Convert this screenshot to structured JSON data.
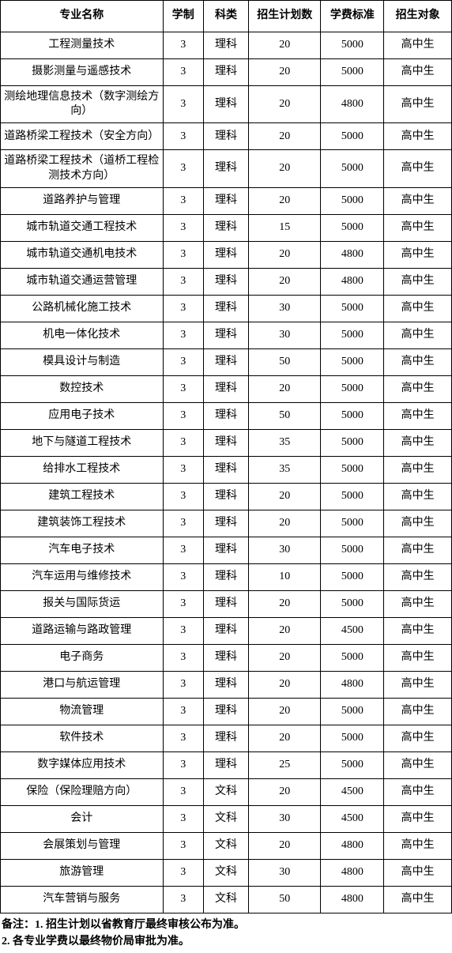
{
  "table": {
    "columns": [
      "专业名称",
      "学制",
      "科类",
      "招生计划数",
      "学费标准",
      "招生对象"
    ],
    "column_widths": [
      "36%",
      "9%",
      "10%",
      "16%",
      "14%",
      "15%"
    ],
    "border_color": "#000000",
    "background_color": "#ffffff",
    "font_family": "SimSun",
    "header_fontsize": 14,
    "cell_fontsize": 14,
    "rows": [
      [
        "工程测量技术",
        "3",
        "理科",
        "20",
        "5000",
        "高中生"
      ],
      [
        "摄影测量与遥感技术",
        "3",
        "理科",
        "20",
        "5000",
        "高中生"
      ],
      [
        "测绘地理信息技术（数字测绘方向）",
        "3",
        "理科",
        "20",
        "4800",
        "高中生"
      ],
      [
        "道路桥梁工程技术（安全方向）",
        "3",
        "理科",
        "20",
        "5000",
        "高中生"
      ],
      [
        "道路桥梁工程技术（道桥工程检测技术方向）",
        "3",
        "理科",
        "20",
        "5000",
        "高中生"
      ],
      [
        "道路养护与管理",
        "3",
        "理科",
        "20",
        "5000",
        "高中生"
      ],
      [
        "城市轨道交通工程技术",
        "3",
        "理科",
        "15",
        "5000",
        "高中生"
      ],
      [
        "城市轨道交通机电技术",
        "3",
        "理科",
        "20",
        "4800",
        "高中生"
      ],
      [
        "城市轨道交通运营管理",
        "3",
        "理科",
        "20",
        "4800",
        "高中生"
      ],
      [
        "公路机械化施工技术",
        "3",
        "理科",
        "30",
        "5000",
        "高中生"
      ],
      [
        "机电一体化技术",
        "3",
        "理科",
        "30",
        "5000",
        "高中生"
      ],
      [
        "模具设计与制造",
        "3",
        "理科",
        "50",
        "5000",
        "高中生"
      ],
      [
        "数控技术",
        "3",
        "理科",
        "20",
        "5000",
        "高中生"
      ],
      [
        "应用电子技术",
        "3",
        "理科",
        "50",
        "5000",
        "高中生"
      ],
      [
        "地下与隧道工程技术",
        "3",
        "理科",
        "35",
        "5000",
        "高中生"
      ],
      [
        "给排水工程技术",
        "3",
        "理科",
        "35",
        "5000",
        "高中生"
      ],
      [
        "建筑工程技术",
        "3",
        "理科",
        "20",
        "5000",
        "高中生"
      ],
      [
        "建筑装饰工程技术",
        "3",
        "理科",
        "20",
        "5000",
        "高中生"
      ],
      [
        "汽车电子技术",
        "3",
        "理科",
        "30",
        "5000",
        "高中生"
      ],
      [
        "汽车运用与维修技术",
        "3",
        "理科",
        "10",
        "5000",
        "高中生"
      ],
      [
        "报关与国际货运",
        "3",
        "理科",
        "20",
        "5000",
        "高中生"
      ],
      [
        "道路运输与路政管理",
        "3",
        "理科",
        "20",
        "4500",
        "高中生"
      ],
      [
        "电子商务",
        "3",
        "理科",
        "20",
        "5000",
        "高中生"
      ],
      [
        "港口与航运管理",
        "3",
        "理科",
        "20",
        "4800",
        "高中生"
      ],
      [
        "物流管理",
        "3",
        "理科",
        "20",
        "5000",
        "高中生"
      ],
      [
        "软件技术",
        "3",
        "理科",
        "20",
        "5000",
        "高中生"
      ],
      [
        "数字媒体应用技术",
        "3",
        "理科",
        "25",
        "5000",
        "高中生"
      ],
      [
        "保险（保险理赔方向）",
        "3",
        "文科",
        "20",
        "4500",
        "高中生"
      ],
      [
        "会计",
        "3",
        "文科",
        "30",
        "4500",
        "高中生"
      ],
      [
        "会展策划与管理",
        "3",
        "文科",
        "20",
        "4800",
        "高中生"
      ],
      [
        "旅游管理",
        "3",
        "文科",
        "30",
        "4800",
        "高中生"
      ],
      [
        "汽车营销与服务",
        "3",
        "文科",
        "50",
        "4800",
        "高中生"
      ]
    ]
  },
  "notes": {
    "line1": "备注：1. 招生计划以省教育厅最终审核公布为准。",
    "line2": "2. 各专业学费以最终物价局审批为准。"
  }
}
